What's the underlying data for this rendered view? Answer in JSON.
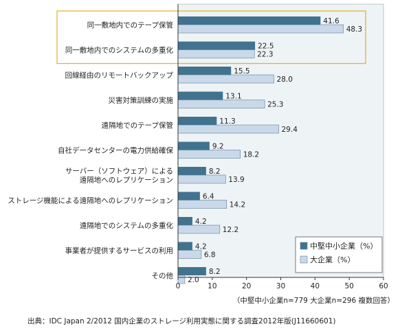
{
  "chart_data": {
    "type": "bar",
    "orientation": "horizontal",
    "categories": [
      [
        "同一敷地内でのテープ保管"
      ],
      [
        "同一敷地内でのシステムの多重化"
      ],
      [
        "回線経由のリモートバックアップ"
      ],
      [
        "災害対策訓練の実施"
      ],
      [
        "遠隔地でのテープ保管"
      ],
      [
        "自社データセンターの電力供給確保"
      ],
      [
        "サーバー（ソフトウェア）による",
        "遠隔地へのレプリケーション"
      ],
      [
        "ストレージ機能による遠隔地へのレプリケーション"
      ],
      [
        "遠隔地でのシステムの多重化"
      ],
      [
        "事業者が提供するサービスの利用"
      ],
      [
        "その他"
      ]
    ],
    "series": [
      {
        "name": "中堅中小企業（%）",
        "color": "#41738f",
        "values": [
          41.6,
          22.5,
          15.5,
          13.1,
          11.3,
          9.2,
          8.2,
          6.4,
          4.2,
          4.2,
          8.2
        ]
      },
      {
        "name": "大企業（%）",
        "color": "#c9d9ea",
        "values": [
          48.3,
          22.3,
          28.0,
          25.3,
          29.4,
          18.2,
          13.9,
          14.2,
          12.2,
          6.8,
          2.0
        ]
      }
    ],
    "value_labels": [
      [
        "41.6",
        "22.5",
        "15.5",
        "13.1",
        "11.3",
        "9.2",
        "8.2",
        "6.4",
        "4.2",
        "4.2",
        "8.2"
      ],
      [
        "48.3",
        "22.3",
        "28.0",
        "25.3",
        "29.4",
        "18.2",
        "13.9",
        "14.2",
        "12.2",
        "6.8",
        "2.0"
      ]
    ],
    "xlim": [
      0,
      60
    ],
    "xticks": [
      "0",
      "10",
      "20",
      "30",
      "40",
      "50",
      "60"
    ],
    "legend_position": "bottom-right",
    "highlighted_categories": [
      0,
      1
    ],
    "plot_background": "#eef3f6",
    "highlight_color": "#e6b32e",
    "note": "（中堅中小企業n=779 大企業n=296 複数回答）",
    "source": "出典：IDC Japan 2/2012 国内企業のストレージ利用実態に関する調査2012年版(J11660601)"
  }
}
